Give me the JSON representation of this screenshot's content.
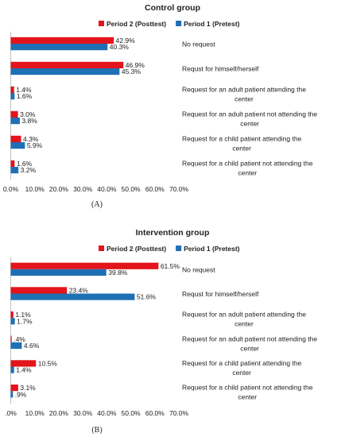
{
  "chart_data": [
    {
      "type": "bar",
      "orientation": "horizontal",
      "title": "Control group",
      "panel_label": "(A)",
      "categories": [
        "No request",
        "Requst for himself/herself",
        "Request for an adult patient attending the center",
        "Request for an adult patient not attending the center",
        "Request for a child patient attending the center",
        "Request for a child patient not attending the center"
      ],
      "series": [
        {
          "name": "Period 2 (Posttest)",
          "color": "#e3141b",
          "values": [
            42.9,
            46.9,
            1.4,
            3.0,
            4.3,
            1.6
          ],
          "labels": [
            "42.9%",
            "46.9%",
            "1.4%",
            "3.0%",
            "4.3%",
            "1.6%"
          ]
        },
        {
          "name": "Period 1 (Pretest)",
          "color": "#1f6fb5",
          "values": [
            40.3,
            45.3,
            1.6,
            3.8,
            5.9,
            3.2
          ],
          "labels": [
            "40.3%",
            "45.3%",
            "1.6%",
            "3.8%",
            "5.9%",
            "3.2%"
          ]
        }
      ],
      "xlim": [
        0,
        70
      ],
      "xticks": [
        "0.0%",
        "10.0%",
        "20.0%",
        "30.0%",
        "40.0%",
        "50.0%",
        "60.0%",
        "70.0%"
      ],
      "legend": "top",
      "grid": false
    },
    {
      "type": "bar",
      "orientation": "horizontal",
      "title": "Intervention group",
      "panel_label": "(B)",
      "categories": [
        "No request",
        "Requst for himself/herself",
        "Request for an adult patient attending the center",
        "Request for an adult patient not attending the center",
        "Request for a child patient attending the center",
        "Request for a child patient not attending the center"
      ],
      "series": [
        {
          "name": "Period 2 (Posttest)",
          "color": "#e3141b",
          "values": [
            61.5,
            23.4,
            1.1,
            0.4,
            10.5,
            3.1
          ],
          "labels": [
            "61.5%",
            "23.4%",
            "1.1%",
            ".4%",
            "10.5%",
            "3.1%"
          ]
        },
        {
          "name": "Period 1 (Pretest)",
          "color": "#1f6fb5",
          "values": [
            39.8,
            51.6,
            1.7,
            4.6,
            1.4,
            0.9
          ],
          "labels": [
            "39.8%",
            "51.6%",
            "1.7%",
            "4.6%",
            "1.4%",
            ".9%"
          ]
        }
      ],
      "xlim": [
        0,
        70
      ],
      "xticks": [
        ".0%",
        "10.0%",
        "20.0%",
        "30.0%",
        "40.0%",
        "50.0%",
        "60.0%",
        "70.0%"
      ],
      "legend": "top",
      "grid": false
    }
  ]
}
